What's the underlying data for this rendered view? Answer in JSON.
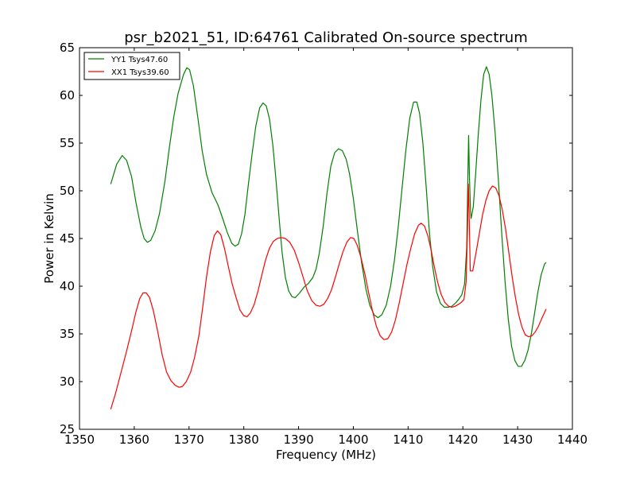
{
  "chart_data": {
    "type": "line",
    "title": "psr_b2021_51, ID:64761 Calibrated On-source spectrum",
    "xlabel": "Frequency (MHz)",
    "ylabel": "Power in Kelvin",
    "xlim": [
      1350,
      1440
    ],
    "ylim": [
      25,
      65
    ],
    "xticks": [
      "1350",
      "1360",
      "1370",
      "1380",
      "1390",
      "1400",
      "1410",
      "1420",
      "1430",
      "1440"
    ],
    "yticks": [
      "25",
      "30",
      "35",
      "40",
      "45",
      "50",
      "55",
      "60",
      "65"
    ],
    "grid": false,
    "legend_position": "top-left",
    "series": [
      {
        "name": "YY1 Tsys47.60",
        "color": "#008000",
        "points": [
          [
            1355.7,
            50.7
          ],
          [
            1356.8,
            52.8
          ],
          [
            1357.8,
            53.7
          ],
          [
            1358.6,
            53.2
          ],
          [
            1359.5,
            51.5
          ],
          [
            1360.3,
            48.8
          ],
          [
            1361.2,
            46.2
          ],
          [
            1361.8,
            45.0
          ],
          [
            1362.4,
            44.6
          ],
          [
            1363.0,
            44.8
          ],
          [
            1363.8,
            45.8
          ],
          [
            1364.6,
            47.6
          ],
          [
            1365.6,
            51.0
          ],
          [
            1366.4,
            54.5
          ],
          [
            1367.2,
            57.7
          ],
          [
            1368.0,
            60.2
          ],
          [
            1369.0,
            62.2
          ],
          [
            1369.6,
            62.9
          ],
          [
            1370.1,
            62.7
          ],
          [
            1370.8,
            61.0
          ],
          [
            1371.6,
            57.7
          ],
          [
            1372.4,
            54.2
          ],
          [
            1373.2,
            51.7
          ],
          [
            1374.2,
            49.8
          ],
          [
            1375.3,
            48.5
          ],
          [
            1376.2,
            47.0
          ],
          [
            1377.0,
            45.6
          ],
          [
            1377.8,
            44.5
          ],
          [
            1378.4,
            44.2
          ],
          [
            1379.0,
            44.4
          ],
          [
            1379.6,
            45.5
          ],
          [
            1380.2,
            47.5
          ],
          [
            1380.8,
            50.5
          ],
          [
            1381.5,
            53.8
          ],
          [
            1382.2,
            56.8
          ],
          [
            1382.9,
            58.7
          ],
          [
            1383.5,
            59.2
          ],
          [
            1384.1,
            58.9
          ],
          [
            1384.7,
            57.5
          ],
          [
            1385.3,
            54.8
          ],
          [
            1385.9,
            51.0
          ],
          [
            1386.5,
            46.8
          ],
          [
            1387.0,
            43.5
          ],
          [
            1387.6,
            40.9
          ],
          [
            1388.2,
            39.5
          ],
          [
            1388.8,
            38.9
          ],
          [
            1389.4,
            38.8
          ],
          [
            1390.2,
            39.3
          ],
          [
            1391.0,
            39.9
          ],
          [
            1391.8,
            40.3
          ],
          [
            1392.6,
            40.9
          ],
          [
            1393.2,
            41.8
          ],
          [
            1393.8,
            43.5
          ],
          [
            1394.5,
            46.3
          ],
          [
            1395.2,
            49.8
          ],
          [
            1395.9,
            52.6
          ],
          [
            1396.6,
            54.0
          ],
          [
            1397.3,
            54.4
          ],
          [
            1398.0,
            54.2
          ],
          [
            1398.7,
            53.3
          ],
          [
            1399.3,
            51.8
          ],
          [
            1400.0,
            49.2
          ],
          [
            1400.7,
            46.0
          ],
          [
            1401.5,
            42.5
          ],
          [
            1402.3,
            39.7
          ],
          [
            1403.0,
            38.0
          ],
          [
            1403.8,
            37.0
          ],
          [
            1404.5,
            36.7
          ],
          [
            1405.2,
            37.0
          ],
          [
            1406.0,
            38.0
          ],
          [
            1406.8,
            40.0
          ],
          [
            1407.5,
            42.7
          ],
          [
            1408.2,
            46.2
          ],
          [
            1408.9,
            50.3
          ],
          [
            1409.6,
            54.3
          ],
          [
            1410.3,
            57.6
          ],
          [
            1411.0,
            59.3
          ],
          [
            1411.6,
            59.3
          ],
          [
            1412.1,
            58.1
          ],
          [
            1412.7,
            55.0
          ],
          [
            1413.3,
            50.4
          ],
          [
            1413.9,
            45.6
          ],
          [
            1414.5,
            42.0
          ],
          [
            1415.2,
            39.4
          ],
          [
            1415.9,
            38.2
          ],
          [
            1416.6,
            37.8
          ],
          [
            1417.3,
            37.8
          ],
          [
            1418.0,
            37.9
          ],
          [
            1418.6,
            38.2
          ],
          [
            1419.2,
            38.6
          ],
          [
            1419.8,
            39.1
          ],
          [
            1420.3,
            40.2
          ],
          [
            1420.7,
            44.0
          ],
          [
            1420.9,
            51.0
          ],
          [
            1421.05,
            55.8
          ],
          [
            1421.2,
            51.5
          ],
          [
            1421.4,
            47.8
          ],
          [
            1421.5,
            47.1
          ],
          [
            1421.9,
            48.3
          ],
          [
            1422.3,
            51.5
          ],
          [
            1422.8,
            55.8
          ],
          [
            1423.3,
            59.5
          ],
          [
            1423.8,
            62.2
          ],
          [
            1424.3,
            63.0
          ],
          [
            1424.8,
            62.2
          ],
          [
            1425.3,
            60.0
          ],
          [
            1425.9,
            56.0
          ],
          [
            1426.5,
            51.0
          ],
          [
            1427.1,
            45.5
          ],
          [
            1427.7,
            40.5
          ],
          [
            1428.3,
            36.5
          ],
          [
            1428.9,
            33.7
          ],
          [
            1429.5,
            32.2
          ],
          [
            1430.1,
            31.6
          ],
          [
            1430.7,
            31.6
          ],
          [
            1431.3,
            32.2
          ],
          [
            1431.9,
            33.3
          ],
          [
            1432.5,
            35.0
          ],
          [
            1433.1,
            37.2
          ],
          [
            1433.7,
            39.4
          ],
          [
            1434.3,
            41.2
          ],
          [
            1434.9,
            42.3
          ],
          [
            1435.2,
            42.5
          ]
        ]
      },
      {
        "name": "XX1 Tsys39.60",
        "color": "#ff0000",
        "points": [
          [
            1355.7,
            27.1
          ],
          [
            1356.6,
            28.8
          ],
          [
            1357.6,
            31.0
          ],
          [
            1358.6,
            33.2
          ],
          [
            1359.5,
            35.3
          ],
          [
            1360.3,
            37.3
          ],
          [
            1361.0,
            38.7
          ],
          [
            1361.6,
            39.3
          ],
          [
            1362.2,
            39.3
          ],
          [
            1362.8,
            38.8
          ],
          [
            1363.5,
            37.4
          ],
          [
            1364.3,
            35.2
          ],
          [
            1365.1,
            32.8
          ],
          [
            1365.9,
            31.0
          ],
          [
            1366.7,
            30.1
          ],
          [
            1367.5,
            29.6
          ],
          [
            1368.2,
            29.4
          ],
          [
            1368.8,
            29.5
          ],
          [
            1369.5,
            30.0
          ],
          [
            1370.3,
            31.0
          ],
          [
            1371.0,
            32.5
          ],
          [
            1371.8,
            34.8
          ],
          [
            1372.5,
            37.8
          ],
          [
            1373.2,
            41.0
          ],
          [
            1373.9,
            43.6
          ],
          [
            1374.6,
            45.3
          ],
          [
            1375.2,
            45.8
          ],
          [
            1375.8,
            45.4
          ],
          [
            1376.5,
            43.9
          ],
          [
            1377.2,
            42.0
          ],
          [
            1377.9,
            40.2
          ],
          [
            1378.6,
            38.8
          ],
          [
            1379.3,
            37.5
          ],
          [
            1380.0,
            36.9
          ],
          [
            1380.6,
            36.8
          ],
          [
            1381.2,
            37.2
          ],
          [
            1381.9,
            38.1
          ],
          [
            1382.6,
            39.5
          ],
          [
            1383.3,
            41.2
          ],
          [
            1384.0,
            42.8
          ],
          [
            1384.7,
            44.0
          ],
          [
            1385.4,
            44.7
          ],
          [
            1386.1,
            45.0
          ],
          [
            1386.8,
            45.1
          ],
          [
            1387.6,
            45.0
          ],
          [
            1388.4,
            44.6
          ],
          [
            1389.2,
            43.8
          ],
          [
            1390.0,
            42.5
          ],
          [
            1390.8,
            41.0
          ],
          [
            1391.6,
            39.5
          ],
          [
            1392.4,
            38.5
          ],
          [
            1393.2,
            38.0
          ],
          [
            1393.9,
            37.9
          ],
          [
            1394.6,
            38.1
          ],
          [
            1395.3,
            38.7
          ],
          [
            1396.0,
            39.6
          ],
          [
            1396.7,
            40.9
          ],
          [
            1397.4,
            42.3
          ],
          [
            1398.1,
            43.6
          ],
          [
            1398.8,
            44.6
          ],
          [
            1399.5,
            45.1
          ],
          [
            1400.1,
            45.0
          ],
          [
            1400.7,
            44.3
          ],
          [
            1401.4,
            43.0
          ],
          [
            1402.1,
            41.3
          ],
          [
            1402.8,
            39.3
          ],
          [
            1403.5,
            37.4
          ],
          [
            1404.2,
            35.8
          ],
          [
            1404.9,
            34.8
          ],
          [
            1405.6,
            34.4
          ],
          [
            1406.3,
            34.5
          ],
          [
            1407.0,
            35.2
          ],
          [
            1407.7,
            36.5
          ],
          [
            1408.4,
            38.3
          ],
          [
            1409.1,
            40.3
          ],
          [
            1409.8,
            42.3
          ],
          [
            1410.5,
            44.0
          ],
          [
            1411.2,
            45.5
          ],
          [
            1411.9,
            46.4
          ],
          [
            1412.4,
            46.6
          ],
          [
            1413.0,
            46.3
          ],
          [
            1413.6,
            45.3
          ],
          [
            1414.2,
            43.8
          ],
          [
            1414.8,
            42.0
          ],
          [
            1415.4,
            40.4
          ],
          [
            1416.0,
            39.2
          ],
          [
            1416.7,
            38.3
          ],
          [
            1417.4,
            37.9
          ],
          [
            1418.0,
            37.8
          ],
          [
            1418.6,
            37.9
          ],
          [
            1419.2,
            38.1
          ],
          [
            1419.7,
            38.3
          ],
          [
            1420.2,
            38.6
          ],
          [
            1420.6,
            40.5
          ],
          [
            1420.85,
            46.0
          ],
          [
            1421.0,
            50.7
          ],
          [
            1421.15,
            47.5
          ],
          [
            1421.35,
            41.6
          ],
          [
            1421.8,
            41.6
          ],
          [
            1422.4,
            43.5
          ],
          [
            1423.0,
            45.5
          ],
          [
            1423.6,
            47.5
          ],
          [
            1424.2,
            49.0
          ],
          [
            1424.8,
            50.0
          ],
          [
            1425.4,
            50.5
          ],
          [
            1426.0,
            50.3
          ],
          [
            1426.6,
            49.5
          ],
          [
            1427.2,
            48.0
          ],
          [
            1427.8,
            46.0
          ],
          [
            1428.4,
            43.5
          ],
          [
            1429.0,
            41.0
          ],
          [
            1429.6,
            38.8
          ],
          [
            1430.2,
            37.0
          ],
          [
            1430.8,
            35.7
          ],
          [
            1431.4,
            34.9
          ],
          [
            1432.0,
            34.7
          ],
          [
            1432.6,
            34.8
          ],
          [
            1433.2,
            35.2
          ],
          [
            1433.8,
            35.8
          ],
          [
            1434.4,
            36.6
          ],
          [
            1435.2,
            37.6
          ]
        ]
      }
    ]
  }
}
